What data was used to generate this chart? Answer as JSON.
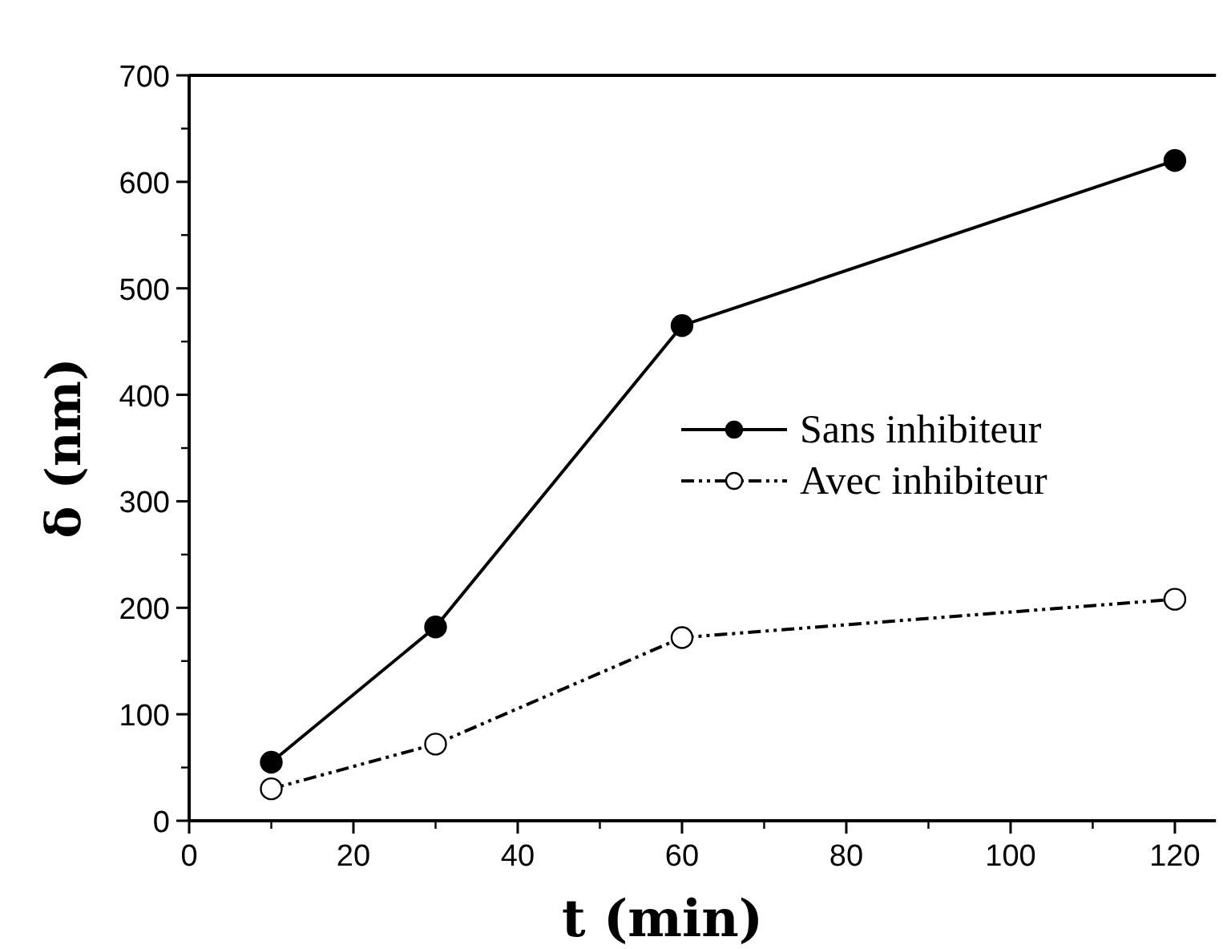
{
  "chart_data": {
    "type": "line",
    "xlabel": "t (min)",
    "ylabel": "δ (nm)",
    "xlim": [
      0,
      125
    ],
    "ylim": [
      0,
      700
    ],
    "xticks": [
      0,
      20,
      40,
      60,
      80,
      100,
      120
    ],
    "yticks": [
      0,
      100,
      200,
      300,
      400,
      500,
      600,
      700
    ],
    "grid": false,
    "legend": "right",
    "marker": "circle",
    "series": [
      {
        "name": "Sans inhibiteur",
        "color": "#000000",
        "line_style": "solid",
        "x": [
          10,
          30,
          60,
          120
        ],
        "values": [
          55,
          182,
          465,
          620
        ]
      },
      {
        "name": "Avec inhibiteur",
        "color": "#000000",
        "line_style": "dashed",
        "x": [
          10,
          30,
          60,
          120
        ],
        "values": [
          30,
          72,
          172,
          208
        ]
      }
    ]
  }
}
